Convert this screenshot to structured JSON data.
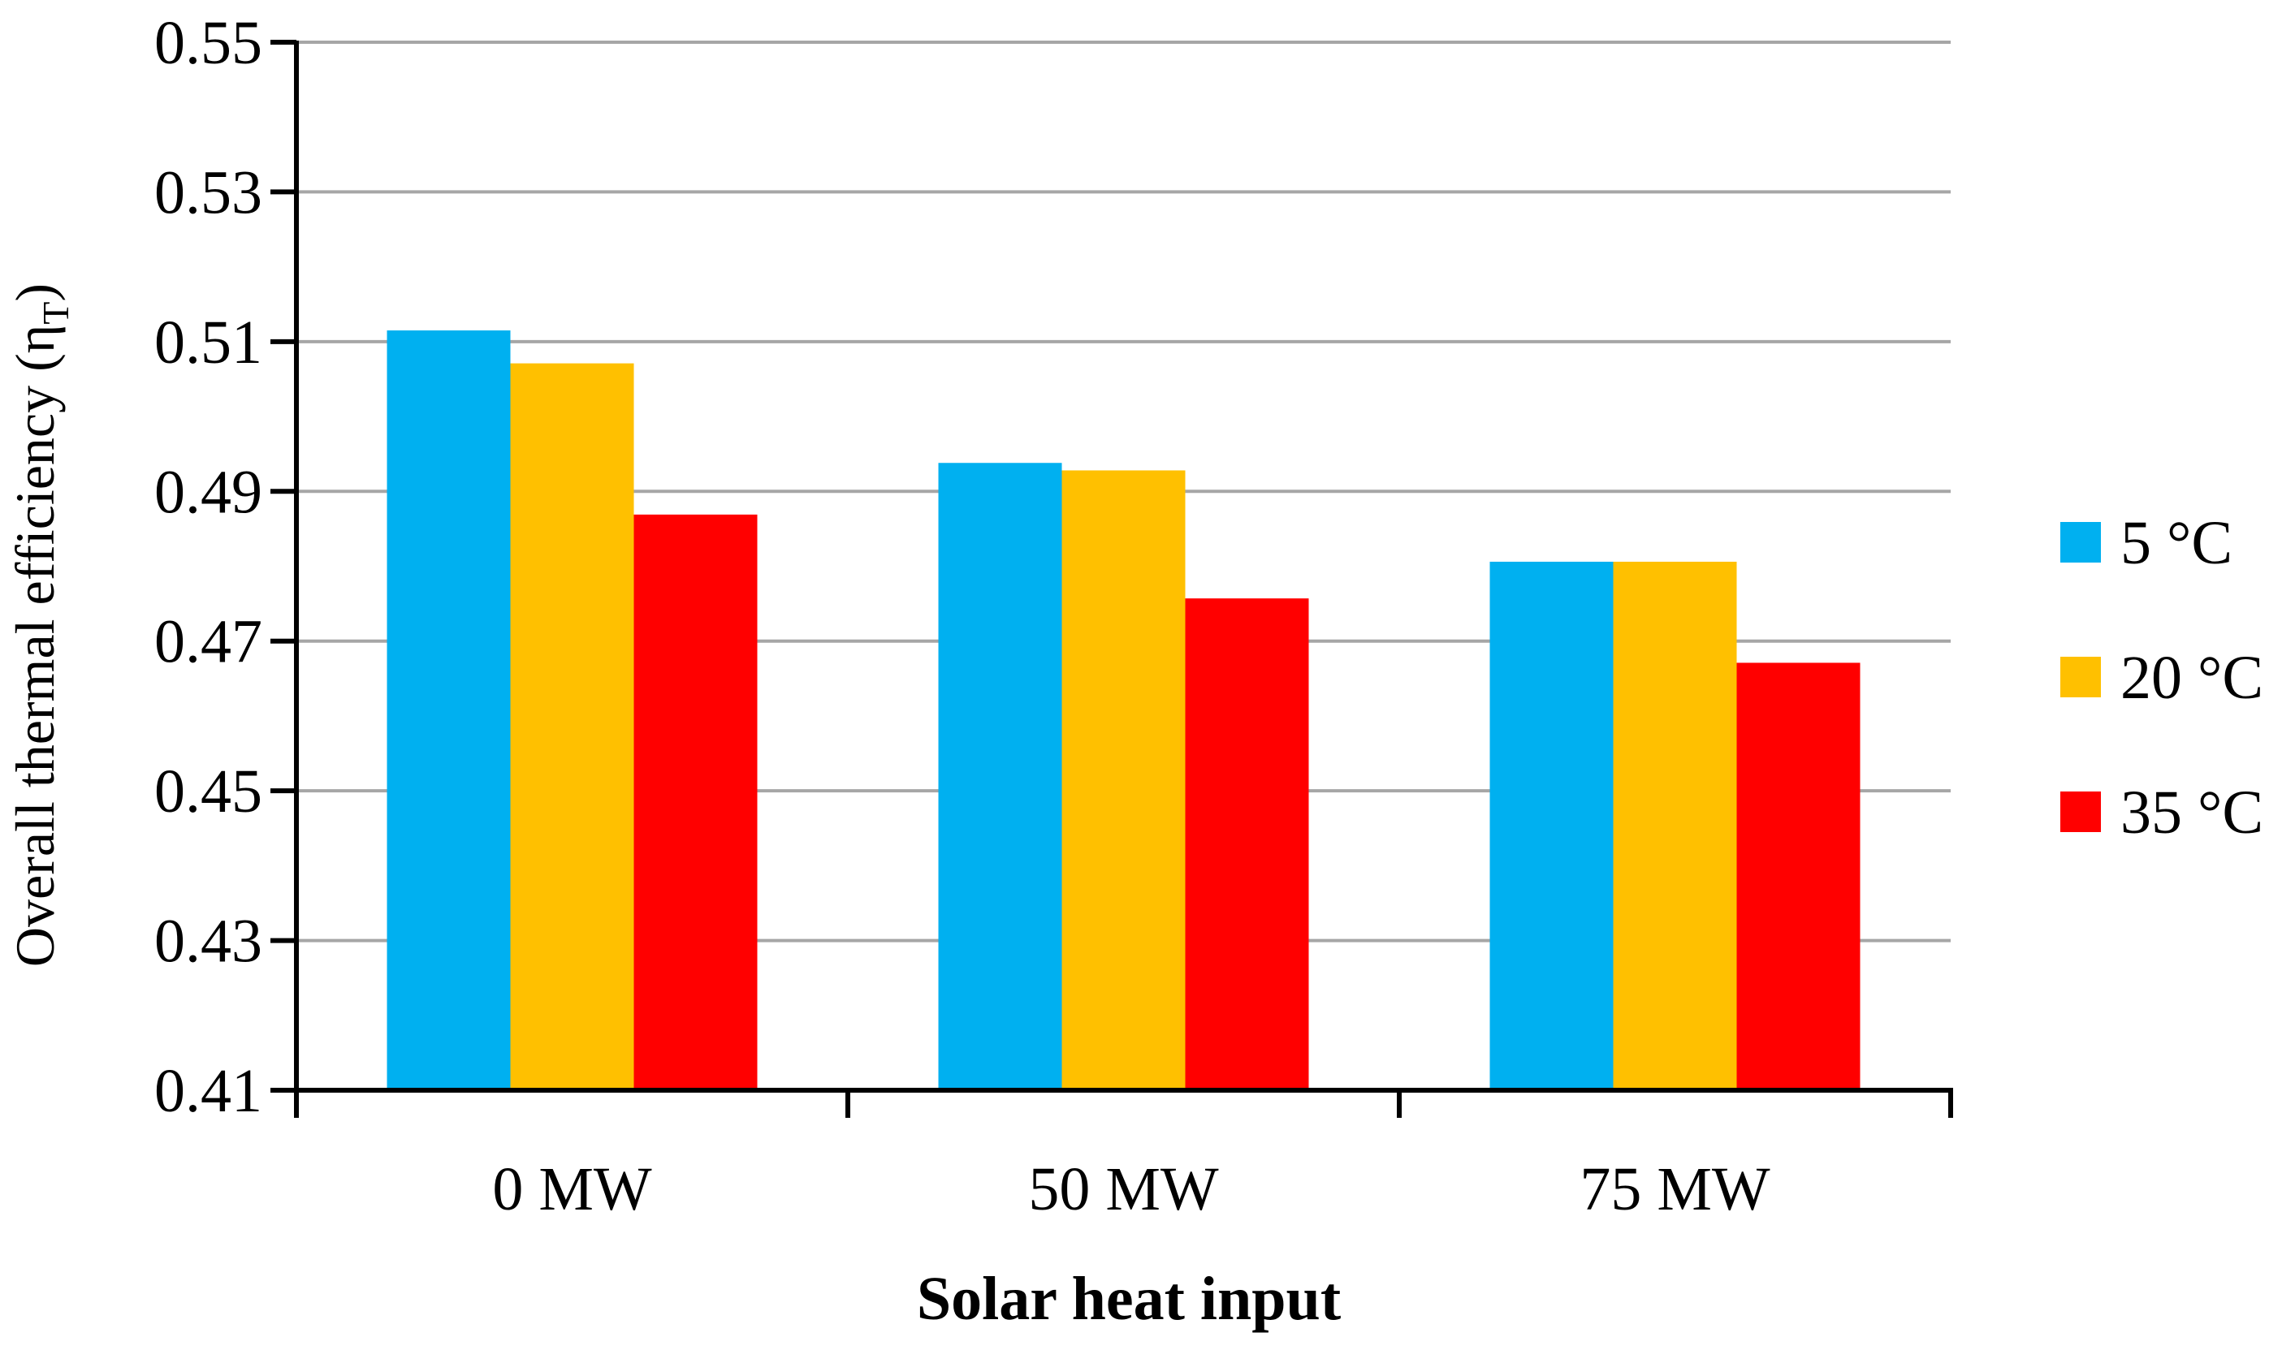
{
  "chart_data": {
    "type": "bar",
    "title": "",
    "xlabel": "Solar heat input",
    "ylabel": "Overall thermal efficiency (η",
    "ylabel_subscript": "T",
    "ylabel_close": ")",
    "categories": [
      "0 MW",
      "50 MW",
      "75 MW"
    ],
    "series": [
      {
        "name": "5 °C",
        "color": "#00b0f0",
        "values": [
          0.5115,
          0.4938,
          0.4806
        ]
      },
      {
        "name": "20 °C",
        "color": "#ffc000",
        "values": [
          0.5071,
          0.4928,
          0.4806
        ]
      },
      {
        "name": "35 °C",
        "color": "#ff0000",
        "values": [
          0.4869,
          0.4757,
          0.4671
        ]
      }
    ],
    "ylim": [
      0.41,
      0.55
    ],
    "yticks": [
      0.41,
      0.43,
      0.45,
      0.47,
      0.49,
      0.51,
      0.53,
      0.55
    ],
    "ytick_labels": [
      "0.41",
      "0.43",
      "0.45",
      "0.47",
      "0.49",
      "0.51",
      "0.53",
      "0.55"
    ],
    "grid": true,
    "legend_position": "right"
  }
}
